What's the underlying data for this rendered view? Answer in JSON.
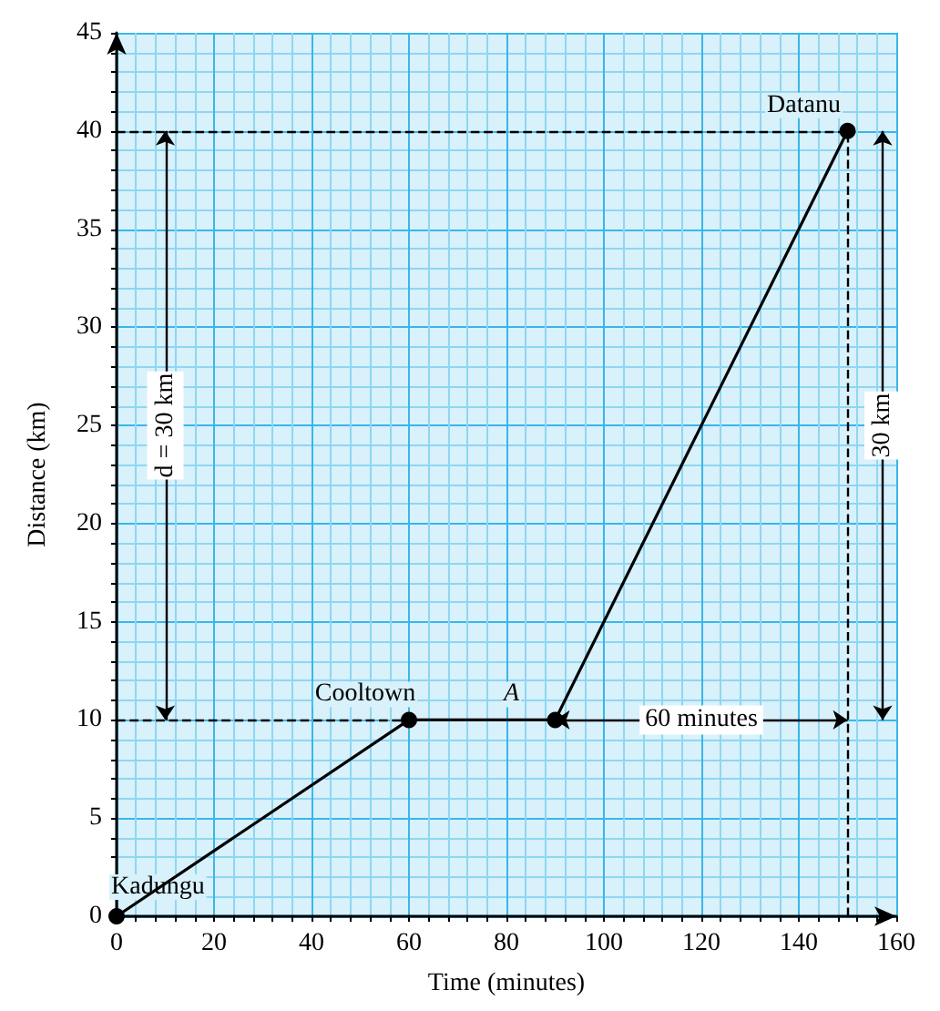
{
  "chart_data": {
    "type": "line",
    "xlabel": "Time (minutes)",
    "ylabel": "Distance (km)",
    "x": [
      0,
      60,
      90,
      150
    ],
    "series": [
      {
        "color": "#000000",
        "values": [
          0,
          10,
          10,
          40
        ]
      }
    ],
    "xlim": [
      0,
      160
    ],
    "xticks": [
      0,
      {
        "value": 4,
        "label": null
      },
      {
        "value": 8,
        "label": null
      },
      {
        "value": 12,
        "label": null
      },
      {
        "value": 16,
        "label": null
      },
      20,
      {
        "value": 24,
        "label": null
      },
      {
        "value": 28,
        "label": null
      },
      {
        "value": 32,
        "label": null
      },
      {
        "value": 36,
        "label": null
      },
      40,
      {
        "value": 44,
        "label": null
      },
      {
        "value": 48,
        "label": null
      },
      {
        "value": 52,
        "label": null
      },
      {
        "value": 56,
        "label": null
      },
      60,
      {
        "value": 64,
        "label": null
      },
      {
        "value": 68,
        "label": null
      },
      {
        "value": 72,
        "label": null
      },
      {
        "value": 76,
        "label": null
      },
      80,
      {
        "value": 84,
        "label": null
      },
      {
        "value": 88,
        "label": null
      },
      {
        "value": 92,
        "label": null
      },
      {
        "value": 96,
        "label": null
      },
      100,
      {
        "value": 104,
        "label": null
      },
      {
        "value": 108,
        "label": null
      },
      {
        "value": 112,
        "label": null
      },
      {
        "value": 116,
        "label": null
      },
      120,
      {
        "value": 124,
        "label": null
      },
      {
        "value": 128,
        "label": null
      },
      {
        "value": 132,
        "label": null
      },
      {
        "value": 136,
        "label": null
      },
      140,
      {
        "value": 144,
        "label": null
      },
      {
        "value": 148,
        "label": null
      },
      {
        "value": 152,
        "label": null
      },
      {
        "value": 156,
        "label": null
      },
      160
    ],
    "ylim": [
      0,
      45
    ],
    "yticks": [
      0,
      {
        "value": 1,
        "label": null
      },
      {
        "value": 2,
        "label": null
      },
      {
        "value": 3,
        "label": null
      },
      {
        "value": 4,
        "label": null
      },
      5,
      {
        "value": 6,
        "label": null
      },
      {
        "value": 7,
        "label": null
      },
      {
        "value": 8,
        "label": null
      },
      {
        "value": 9,
        "label": null
      },
      10,
      {
        "value": 11,
        "label": null
      },
      {
        "value": 12,
        "label": null
      },
      {
        "value": 13,
        "label": null
      },
      {
        "value": 14,
        "label": null
      },
      15,
      {
        "value": 16,
        "label": null
      },
      {
        "value": 17,
        "label": null
      },
      {
        "value": 18,
        "label": null
      },
      {
        "value": 19,
        "label": null
      },
      20,
      {
        "value": 21,
        "label": null
      },
      {
        "value": 22,
        "label": null
      },
      {
        "value": 23,
        "label": null
      },
      {
        "value": 24,
        "label": null
      },
      25,
      {
        "value": 26,
        "label": null
      },
      {
        "value": 27,
        "label": null
      },
      {
        "value": 28,
        "label": null
      },
      {
        "value": 29,
        "label": null
      },
      30,
      {
        "value": 31,
        "label": null
      },
      {
        "value": 32,
        "label": null
      },
      {
        "value": 33,
        "label": null
      },
      {
        "value": 34,
        "label": null
      },
      35,
      {
        "value": 36,
        "label": null
      },
      {
        "value": 37,
        "label": null
      },
      {
        "value": 38,
        "label": null
      },
      {
        "value": 39,
        "label": null
      },
      40,
      {
        "value": 41,
        "label": null
      },
      {
        "value": 42,
        "label": null
      },
      {
        "value": 43,
        "label": null
      },
      {
        "value": 44,
        "label": null
      },
      45
    ],
    "grid": true,
    "marker": "circle",
    "line_style": "solid",
    "ref_lines": [
      {
        "axis": "y",
        "value": 40,
        "label": null,
        "line_style": "dashed",
        "color": "#000000"
      },
      {
        "axis": "y",
        "value": 10,
        "label": null,
        "line_style": "dashed",
        "color": "#000000"
      },
      {
        "axis": "x",
        "value": 150,
        "label": null,
        "line_style": "dashed",
        "color": "#000000"
      }
    ],
    "annotations": [
      {
        "text": "Kadungu",
        "x": 0,
        "y": 0
      },
      {
        "text": "Cooltown",
        "x": 60,
        "y": 10
      },
      {
        "text": "A",
        "x": 90,
        "y": 10
      },
      {
        "text": "Datanu",
        "x": 150,
        "y": 40
      },
      "d = 30 km",
      "30 km",
      "60 minutes"
    ]
  }
}
